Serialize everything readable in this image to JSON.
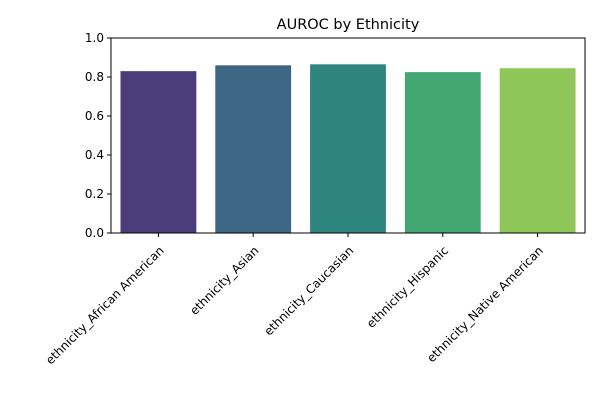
{
  "chart_data": {
    "type": "bar",
    "title": "AUROC by Ethnicity",
    "xlabel": "",
    "ylabel": "",
    "categories": [
      "ethnicity_African American",
      "ethnicity_Asian",
      "ethnicity_Caucasian",
      "ethnicity_Hispanic",
      "ethnicity_Native American"
    ],
    "values": [
      0.83,
      0.86,
      0.865,
      0.825,
      0.845
    ],
    "colors": [
      "#4a3d79",
      "#3d6584",
      "#2e8580",
      "#43a774",
      "#8ec758"
    ],
    "ylim": [
      0,
      1.0
    ],
    "yticks": [
      "0.0",
      "0.2",
      "0.4",
      "0.6",
      "0.8",
      "1.0"
    ],
    "grid": false,
    "legend": "none"
  }
}
